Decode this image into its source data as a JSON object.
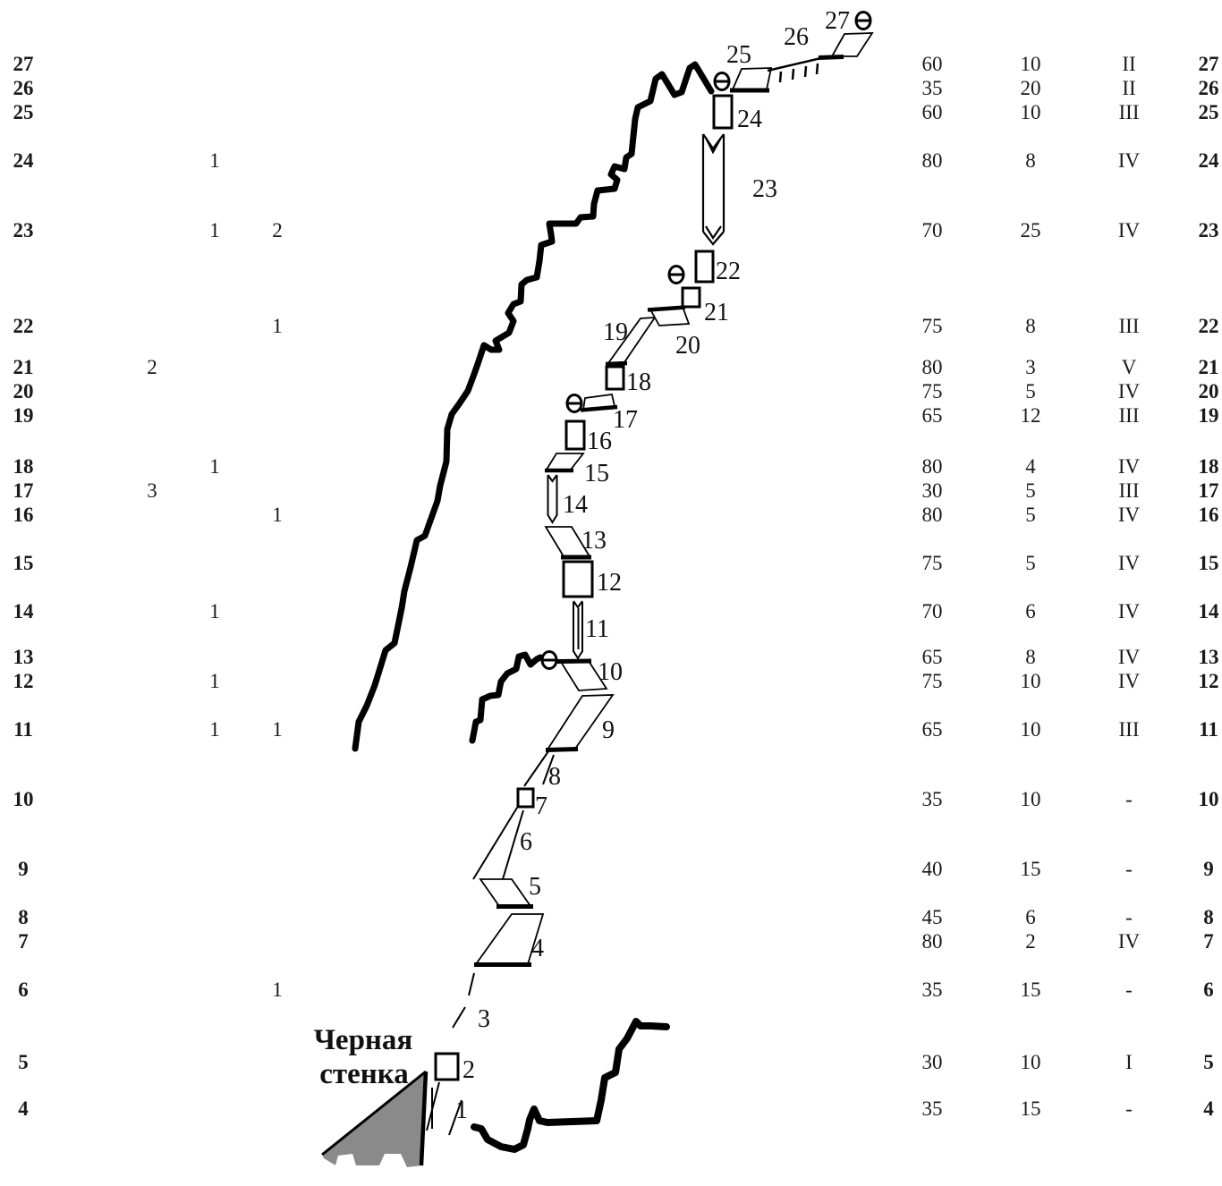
{
  "wall_label": {
    "line1": "Черная",
    "line2": "стенка"
  },
  "marks": [
    "1",
    "2",
    "3",
    "4",
    "5",
    "6",
    "7",
    "8",
    "9",
    "10",
    "11",
    "12",
    "13",
    "14",
    "15",
    "16",
    "17",
    "18",
    "19",
    "20",
    "21",
    "22",
    "23",
    "24",
    "25",
    "26",
    "27"
  ],
  "table": {
    "rows": [
      {
        "pitch": "27",
        "a": "",
        "b": "",
        "c": "",
        "len": "60",
        "mid": "10",
        "grade": "II"
      },
      {
        "pitch": "26",
        "a": "",
        "b": "",
        "c": "",
        "len": "35",
        "mid": "20",
        "grade": "II"
      },
      {
        "pitch": "25",
        "a": "",
        "b": "",
        "c": "",
        "len": "60",
        "mid": "10",
        "grade": "III"
      },
      {
        "pitch": "24",
        "a": "",
        "b": "1",
        "c": "",
        "len": "80",
        "mid": "8",
        "grade": "IV"
      },
      {
        "pitch": "23",
        "a": "",
        "b": "1",
        "c": "2",
        "len": "70",
        "mid": "25",
        "grade": "IV"
      },
      {
        "pitch": "22",
        "a": "",
        "b": "",
        "c": "1",
        "len": "75",
        "mid": "8",
        "grade": "III"
      },
      {
        "pitch": "21",
        "a": "2",
        "b": "",
        "c": "",
        "len": "80",
        "mid": "3",
        "grade": "V"
      },
      {
        "pitch": "20",
        "a": "",
        "b": "",
        "c": "",
        "len": "75",
        "mid": "5",
        "grade": "IV"
      },
      {
        "pitch": "19",
        "a": "",
        "b": "",
        "c": "",
        "len": "65",
        "mid": "12",
        "grade": "III"
      },
      {
        "pitch": "18",
        "a": "",
        "b": "1",
        "c": "",
        "len": "80",
        "mid": "4",
        "grade": "IV"
      },
      {
        "pitch": "17",
        "a": "3",
        "b": "",
        "c": "",
        "len": "30",
        "mid": "5",
        "grade": "III"
      },
      {
        "pitch": "16",
        "a": "",
        "b": "",
        "c": "1",
        "len": "80",
        "mid": "5",
        "grade": "IV"
      },
      {
        "pitch": "15",
        "a": "",
        "b": "",
        "c": "",
        "len": "75",
        "mid": "5",
        "grade": "IV"
      },
      {
        "pitch": "14",
        "a": "",
        "b": "1",
        "c": "",
        "len": "70",
        "mid": "6",
        "grade": "IV"
      },
      {
        "pitch": "13",
        "a": "",
        "b": "",
        "c": "",
        "len": "65",
        "mid": "8",
        "grade": "IV"
      },
      {
        "pitch": "12",
        "a": "",
        "b": "1",
        "c": "",
        "len": "75",
        "mid": "10",
        "grade": "IV"
      },
      {
        "pitch": "11",
        "a": "",
        "b": "1",
        "c": "1",
        "len": "65",
        "mid": "10",
        "grade": "III"
      },
      {
        "pitch": "10",
        "a": "",
        "b": "",
        "c": "",
        "len": "35",
        "mid": "10",
        "grade": "-"
      },
      {
        "pitch": "9",
        "a": "",
        "b": "",
        "c": "",
        "len": "40",
        "mid": "15",
        "grade": "-"
      },
      {
        "pitch": "8",
        "a": "",
        "b": "",
        "c": "",
        "len": "45",
        "mid": "6",
        "grade": "-"
      },
      {
        "pitch": "7",
        "a": "",
        "b": "",
        "c": "",
        "len": "80",
        "mid": "2",
        "grade": "IV"
      },
      {
        "pitch": "6",
        "a": "",
        "b": "",
        "c": "1",
        "len": "35",
        "mid": "15",
        "grade": "-"
      },
      {
        "pitch": "5",
        "a": "",
        "b": "",
        "c": "",
        "len": "30",
        "mid": "10",
        "grade": "I"
      },
      {
        "pitch": "4",
        "a": "",
        "b": "",
        "c": "",
        "len": "35",
        "mid": "15",
        "grade": "-"
      }
    ]
  }
}
